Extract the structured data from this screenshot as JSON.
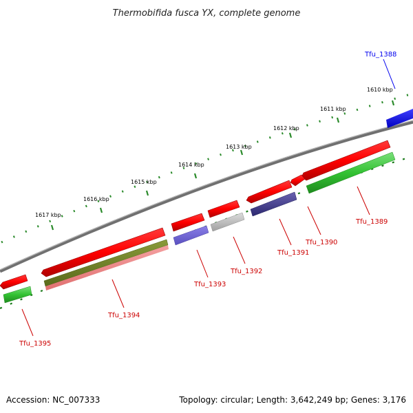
{
  "title": "Thermobifida fusca YX, complete genome",
  "accession": "Accession: NC_007333",
  "summary": "Topology: circular; Length: 3,642,249 bp; Genes: 3,176",
  "ticks": [
    {
      "label": "1610 kbp"
    },
    {
      "label": "1611 kbp"
    },
    {
      "label": "1612 kbp"
    },
    {
      "label": "1613 kbp"
    },
    {
      "label": "1614 kbp"
    },
    {
      "label": "1615 kbp"
    },
    {
      "label": "1616 kbp"
    },
    {
      "label": "1617 kbp"
    }
  ],
  "genes": [
    {
      "name": "Tfu_1388",
      "color": "#0000ee"
    },
    {
      "name": "Tfu_1389",
      "color": "#cc0000"
    },
    {
      "name": "Tfu_1390",
      "color": "#cc0000"
    },
    {
      "name": "Tfu_1391",
      "color": "#cc0000"
    },
    {
      "name": "Tfu_1392",
      "color": "#cc0000"
    },
    {
      "name": "Tfu_1393",
      "color": "#cc0000"
    },
    {
      "name": "Tfu_1394",
      "color": "#cc0000"
    },
    {
      "name": "Tfu_1395",
      "color": "#cc0000"
    }
  ],
  "colors": {
    "backbone": "#7a7a7a",
    "strand_forward": "#ff0000",
    "blue_feature": "#1010f0",
    "green_feature": "#33cc33",
    "dashes": "#1a7a1a",
    "dots_outer": "#2a8a2a"
  }
}
